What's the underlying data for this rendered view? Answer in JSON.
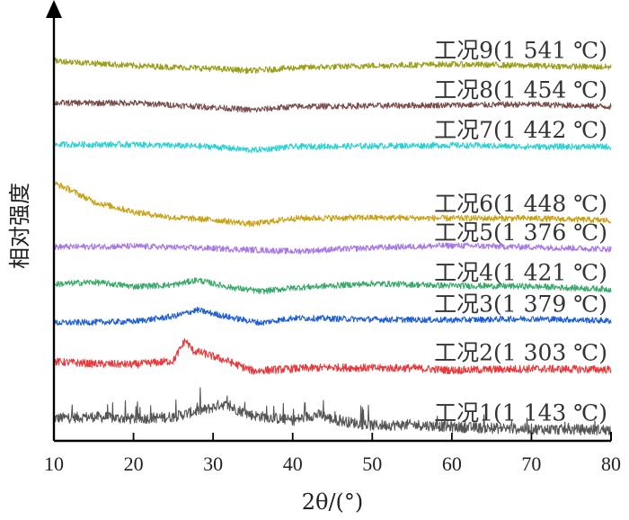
{
  "chart_data": {
    "type": "line",
    "xlabel": "2θ/(°)",
    "ylabel": "相对强度",
    "xlim": [
      10,
      80
    ],
    "x_ticks": [
      "10",
      "20",
      "30",
      "40",
      "50",
      "60",
      "70",
      "80"
    ],
    "y_ticks": "none",
    "grid": false,
    "legend": "none",
    "series": [
      {
        "name": "工况1(1 143 ℃)",
        "color": "#555555",
        "x": [
          10,
          15,
          20,
          25,
          26.5,
          28,
          29,
          30,
          31,
          35,
          40,
          42.5,
          43.5,
          45,
          50,
          55,
          60,
          65,
          70,
          75,
          80
        ],
        "y": [
          2.4,
          2.6,
          2.3,
          2.6,
          3.0,
          3.4,
          3.6,
          3.9,
          4.4,
          2.8,
          2.1,
          2.8,
          2.9,
          2.2,
          1.4,
          1.5,
          1.2,
          1.0,
          0.9,
          0.8,
          0.8
        ]
      },
      {
        "name": "工况2(1 303 ℃)",
        "color": "#e8393c",
        "x": [
          10,
          15,
          20,
          25,
          26.5,
          27.5,
          29,
          32,
          35,
          40,
          45,
          50,
          55,
          60,
          70,
          80
        ],
        "y": [
          10.3,
          10.0,
          9.9,
          10.4,
          13.3,
          11.8,
          11.4,
          10.3,
          9.0,
          9.3,
          9.5,
          9.4,
          9.4,
          9.1,
          9.3,
          9.2
        ]
      },
      {
        "name": "工况3(1 379 ℃)",
        "color": "#1f5fd6",
        "x": [
          10,
          20,
          25,
          28,
          32,
          36,
          40,
          50,
          60,
          70,
          80
        ],
        "y": [
          15.7,
          15.9,
          16.6,
          17.5,
          16.5,
          15.7,
          16.4,
          16.2,
          16.1,
          16.3,
          16.0
        ]
      },
      {
        "name": "工况4(1 421 ℃)",
        "color": "#3aaa6a",
        "x": [
          10,
          15,
          20,
          25,
          28,
          32,
          36,
          40,
          50,
          60,
          70,
          80
        ],
        "y": [
          21.1,
          21.4,
          20.8,
          21.0,
          21.7,
          20.7,
          20.1,
          20.6,
          21.2,
          20.9,
          20.8,
          20.4
        ]
      },
      {
        "name": "工况5(1 376 ℃)",
        "color": "#a879e6",
        "x": [
          10,
          20,
          30,
          40,
          50,
          60,
          70,
          80
        ],
        "y": [
          26.3,
          26.4,
          26.1,
          25.7,
          26.2,
          26.5,
          26.3,
          26.0
        ]
      },
      {
        "name": "工况6(1 448 ℃)",
        "color": "#caa013",
        "x": [
          10,
          12,
          15,
          20,
          25,
          30,
          35,
          40,
          50,
          60,
          70,
          80
        ],
        "y": [
          35.2,
          34.3,
          32.6,
          31.2,
          30.4,
          30.1,
          29.5,
          30.3,
          30.4,
          30.3,
          30.3,
          30.0
        ]
      },
      {
        "name": "工况7(1 442 ℃)",
        "color": "#2bd1d4",
        "x": [
          10,
          20,
          30,
          35,
          40,
          50,
          60,
          70,
          80
        ],
        "y": [
          40.6,
          40.6,
          40.3,
          39.8,
          40.3,
          40.4,
          40.5,
          40.3,
          40.3
        ]
      },
      {
        "name": "工况8(1 454 ℃)",
        "color": "#7a4b4b",
        "x": [
          10,
          20,
          30,
          35,
          40,
          50,
          60,
          70,
          80
        ],
        "y": [
          46.4,
          46.4,
          45.8,
          45.4,
          45.9,
          46.0,
          46.1,
          46.2,
          45.9
        ]
      },
      {
        "name": "工况9(1 541 ℃)",
        "color": "#9a9e18",
        "x": [
          10,
          20,
          30,
          35,
          40,
          50,
          60,
          70,
          80
        ],
        "y": [
          52.3,
          51.6,
          51.2,
          50.9,
          51.3,
          51.6,
          51.8,
          51.6,
          51.4
        ]
      }
    ]
  }
}
